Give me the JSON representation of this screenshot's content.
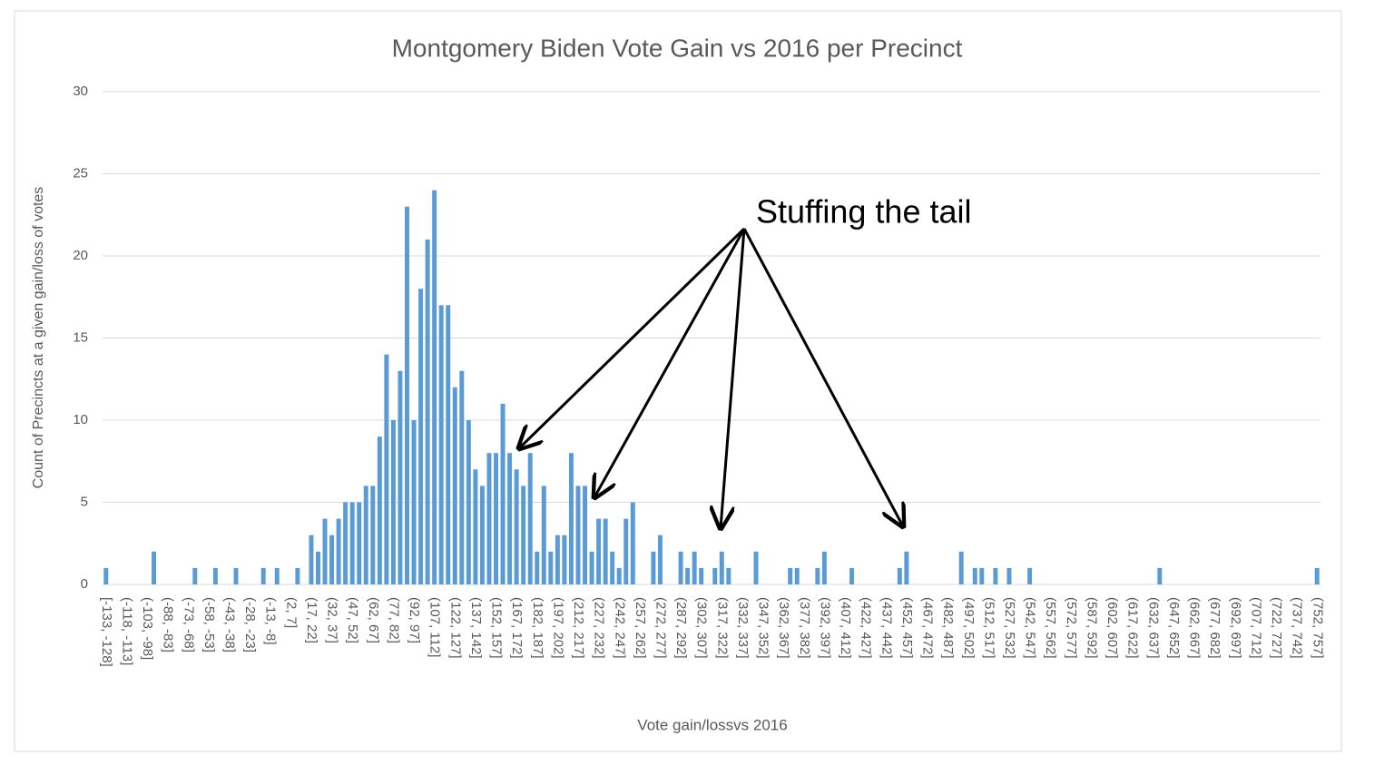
{
  "chart_data": {
    "type": "bar",
    "title": "Montgomery Biden Vote Gain vs 2016 per Precinct",
    "x_label": "Vote gain/lossvs 2016",
    "y_label": "Count of Precincts at a given gain/loss of votes",
    "annotation": "Stuffing the tail",
    "categories": [
      "[-133, -128]",
      null,
      null,
      "(-118, -113]",
      null,
      null,
      "(-103, -98]",
      null,
      null,
      "(-88, -83]",
      null,
      null,
      "(-73, -68]",
      null,
      null,
      "(-58, -53]",
      null,
      null,
      "(-43, -38]",
      null,
      null,
      "(-28, -23]",
      null,
      null,
      "(-13, -8]",
      null,
      null,
      "(2, 7]",
      null,
      null,
      "(17, 22]",
      null,
      null,
      "(32, 37]",
      null,
      null,
      "(47, 52]",
      null,
      null,
      "(62, 67]",
      null,
      null,
      "(77, 82]",
      null,
      null,
      "(92, 97]",
      null,
      null,
      "(107, 112]",
      null,
      null,
      "(122, 127]",
      null,
      null,
      "(137, 142]",
      null,
      null,
      "(152, 157]",
      null,
      null,
      "(167, 172]",
      null,
      null,
      "(182, 187]",
      null,
      null,
      "(197, 202]",
      null,
      null,
      "(212, 217]",
      null,
      null,
      "(227, 232]",
      null,
      null,
      "(242, 247]",
      null,
      null,
      "(257, 262]",
      null,
      null,
      "(272, 277]",
      null,
      null,
      "(287, 292]",
      null,
      null,
      "(302, 307]",
      null,
      null,
      "(317, 322]",
      null,
      null,
      "(332, 337]",
      null,
      null,
      "(347, 352]",
      null,
      null,
      "(362, 367]",
      null,
      null,
      "(377, 382]",
      null,
      null,
      "(392, 397]",
      null,
      null,
      "(407, 412]",
      null,
      null,
      "(422, 427]",
      null,
      null,
      "(437, 442]",
      null,
      null,
      "(452, 457]",
      null,
      null,
      "(467, 472]",
      null,
      null,
      "(482, 487]",
      null,
      null,
      "(497, 502]",
      null,
      null,
      "(512, 517]",
      null,
      null,
      "(527, 532]",
      null,
      null,
      "(542, 547]",
      null,
      null,
      "(557, 562]",
      null,
      null,
      "(572, 577]",
      null,
      null,
      "(587, 592]",
      null,
      null,
      "(602, 607]",
      null,
      null,
      "(617, 622]",
      null,
      null,
      "(632, 637]",
      null,
      null,
      "(647, 652]",
      null,
      null,
      "(662, 667]",
      null,
      null,
      "(677, 682]",
      null,
      null,
      "(692, 697]",
      null,
      null,
      "(707, 712]",
      null,
      null,
      "(722, 727]",
      null,
      null,
      "(737, 742]",
      null,
      null,
      "(752, 757]"
    ],
    "values": [
      1,
      0,
      0,
      0,
      0,
      0,
      0,
      2,
      0,
      0,
      0,
      0,
      0,
      1,
      0,
      0,
      1,
      0,
      0,
      1,
      0,
      0,
      0,
      1,
      0,
      1,
      0,
      0,
      1,
      0,
      3,
      2,
      4,
      3,
      4,
      5,
      5,
      5,
      6,
      6,
      9,
      14,
      10,
      13,
      23,
      10,
      18,
      21,
      24,
      17,
      17,
      12,
      13,
      10,
      7,
      6,
      8,
      8,
      11,
      8,
      7,
      6,
      8,
      2,
      6,
      2,
      3,
      3,
      8,
      6,
      6,
      2,
      4,
      4,
      2,
      1,
      4,
      5,
      0,
      0,
      2,
      3,
      0,
      0,
      2,
      1,
      2,
      1,
      0,
      1,
      2,
      1,
      0,
      0,
      0,
      2,
      0,
      0,
      0,
      0,
      1,
      1,
      0,
      0,
      1,
      2,
      0,
      0,
      0,
      1,
      0,
      0,
      0,
      0,
      0,
      0,
      1,
      2,
      0,
      0,
      0,
      0,
      0,
      0,
      0,
      2,
      0,
      1,
      1,
      0,
      1,
      0,
      1,
      0,
      0,
      1,
      0,
      0,
      0,
      0,
      0,
      0,
      0,
      0,
      0,
      0,
      0,
      0,
      0,
      0,
      0,
      0,
      0,
      0,
      1,
      0,
      0,
      0,
      0,
      0,
      0,
      0,
      0,
      0,
      0,
      0,
      0,
      0,
      0,
      0,
      0,
      0,
      0,
      0,
      0,
      0,
      0,
      1
    ],
    "color": "#5b9bd5",
    "ylim": [
      0,
      30
    ],
    "yticks": [
      0,
      5,
      10,
      15,
      20,
      25,
      30
    ],
    "grid": true
  }
}
